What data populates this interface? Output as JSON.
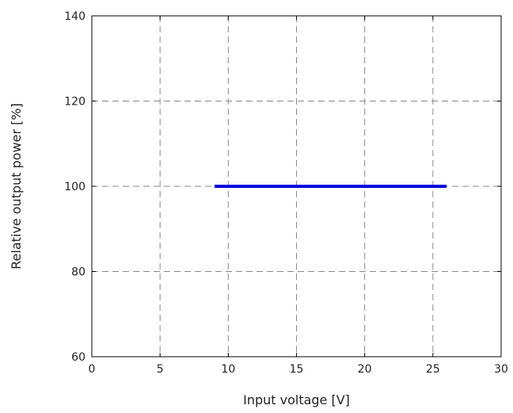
{
  "chart_data": {
    "type": "line",
    "xlabel": "Input voltage [V]",
    "ylabel": "Relative output power [%]",
    "xlim": [
      0,
      30
    ],
    "ylim": [
      60,
      140
    ],
    "xticks": [
      0,
      5,
      10,
      15,
      20,
      25,
      30
    ],
    "yticks": [
      60,
      80,
      100,
      120,
      140
    ],
    "grid": true,
    "series": [
      {
        "x": [
          9,
          26
        ],
        "y": [
          100,
          100
        ],
        "color": "#0000dd"
      }
    ]
  }
}
